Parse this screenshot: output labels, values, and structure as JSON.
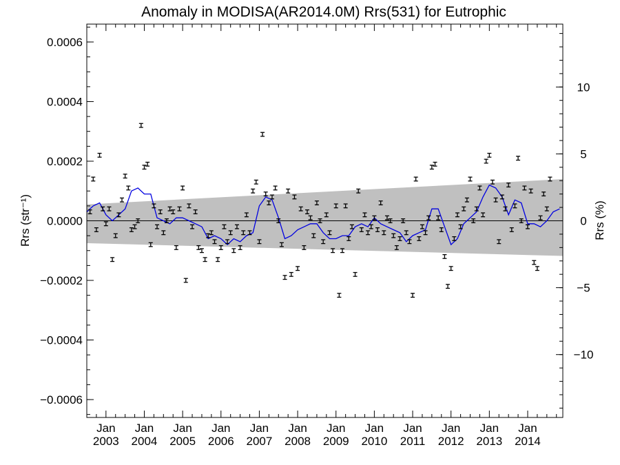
{
  "chart_data": {
    "type": "scatter",
    "title": "Anomaly in MODISA(AR2014.0M) Rrs(531) for Eutrophic",
    "ylabel_left": "Rrs (str⁻¹)",
    "ylabel_right": "Rrs (%)",
    "x_range": [
      "2002-07",
      "2014-12"
    ],
    "ylim_left": [
      -0.00066,
      0.00066
    ],
    "ylim_right": [
      -14.7,
      14.7
    ],
    "x_tick_month": "Jan",
    "x_tick_years": [
      "2003",
      "2004",
      "2005",
      "2006",
      "2007",
      "2008",
      "2009",
      "2010",
      "2011",
      "2012",
      "2013",
      "2014"
    ],
    "y_ticks_left": [
      {
        "value": 0.0006,
        "label": "0.0006"
      },
      {
        "value": 0.0004,
        "label": "0.0004"
      },
      {
        "value": 0.0002,
        "label": "0.0002"
      },
      {
        "value": 0.0,
        "label": "0.0000"
      },
      {
        "value": -0.0002,
        "label": "−0.0002"
      },
      {
        "value": -0.0004,
        "label": "−0.0004"
      },
      {
        "value": -0.0006,
        "label": "−0.0006"
      }
    ],
    "y_ticks_right": [
      {
        "value": 10,
        "label": "10"
      },
      {
        "value": 5,
        "label": "5"
      },
      {
        "value": 0,
        "label": "0"
      },
      {
        "value": -5,
        "label": "−5"
      },
      {
        "value": -10,
        "label": "−10"
      }
    ],
    "band": {
      "start": [
        -7.5e-05,
        5.5e-05
      ],
      "end": [
        -0.000118,
        0.00014
      ]
    },
    "zero_line": 0,
    "colors": {
      "band": "#c0c0c0",
      "line": "#0000e0",
      "points": "#000000"
    },
    "error_half_width": 6.5e-06,
    "points": [
      [
        "2002-08",
        3e-05
      ],
      [
        "2002-09",
        0.00014
      ],
      [
        "2002-10",
        -3e-05
      ],
      [
        "2002-11",
        0.00022
      ],
      [
        "2002-12",
        4e-05
      ],
      [
        "2003-01",
        -1e-05
      ],
      [
        "2003-02",
        4e-05
      ],
      [
        "2003-03",
        -0.00013
      ],
      [
        "2003-04",
        -5e-05
      ],
      [
        "2003-05",
        2e-05
      ],
      [
        "2003-06",
        7e-05
      ],
      [
        "2003-07",
        0.00015
      ],
      [
        "2003-08",
        0.00011
      ],
      [
        "2003-09",
        -3e-05
      ],
      [
        "2003-10",
        -2e-05
      ],
      [
        "2003-11",
        0.0
      ],
      [
        "2003-12",
        0.00032
      ],
      [
        "2004-01",
        0.00018
      ],
      [
        "2004-02",
        0.00019
      ],
      [
        "2004-03",
        -8e-05
      ],
      [
        "2004-04",
        5e-05
      ],
      [
        "2004-05",
        -2e-05
      ],
      [
        "2004-06",
        3e-05
      ],
      [
        "2004-07",
        -4e-05
      ],
      [
        "2004-08",
        0.0
      ],
      [
        "2004-09",
        4e-05
      ],
      [
        "2004-10",
        3e-05
      ],
      [
        "2004-11",
        -9e-05
      ],
      [
        "2004-12",
        4e-05
      ],
      [
        "2005-01",
        0.00011
      ],
      [
        "2005-02",
        -0.0002
      ],
      [
        "2005-03",
        5e-05
      ],
      [
        "2005-04",
        -2e-05
      ],
      [
        "2005-05",
        3e-05
      ],
      [
        "2005-06",
        -9e-05
      ],
      [
        "2005-07",
        -0.0001
      ],
      [
        "2005-08",
        -0.00013
      ],
      [
        "2005-09",
        -5e-05
      ],
      [
        "2005-10",
        -4e-05
      ],
      [
        "2005-11",
        -7e-05
      ],
      [
        "2005-12",
        -0.00013
      ],
      [
        "2006-01",
        -9e-05
      ],
      [
        "2006-02",
        -2e-05
      ],
      [
        "2006-03",
        -7e-05
      ],
      [
        "2006-04",
        -4e-05
      ],
      [
        "2006-05",
        -0.0001
      ],
      [
        "2006-06",
        -2e-05
      ],
      [
        "2006-07",
        -9e-05
      ],
      [
        "2006-08",
        -4e-05
      ],
      [
        "2006-09",
        2e-05
      ],
      [
        "2006-10",
        -4e-05
      ],
      [
        "2006-11",
        0.0001
      ],
      [
        "2006-12",
        0.00013
      ],
      [
        "2007-01",
        -7e-05
      ],
      [
        "2007-02",
        0.00029
      ],
      [
        "2007-03",
        9e-05
      ],
      [
        "2007-04",
        6e-05
      ],
      [
        "2007-05",
        8e-05
      ],
      [
        "2007-06",
        0.00011
      ],
      [
        "2007-07",
        0.0
      ],
      [
        "2007-08",
        -8e-05
      ],
      [
        "2007-09",
        -0.00019
      ],
      [
        "2007-10",
        0.0001
      ],
      [
        "2007-11",
        -0.00018
      ],
      [
        "2007-12",
        8e-05
      ],
      [
        "2008-01",
        -0.00016
      ],
      [
        "2008-02",
        4e-05
      ],
      [
        "2008-03",
        -9e-05
      ],
      [
        "2008-04",
        3e-05
      ],
      [
        "2008-05",
        1e-05
      ],
      [
        "2008-06",
        -5e-05
      ],
      [
        "2008-07",
        6e-05
      ],
      [
        "2008-08",
        0.0
      ],
      [
        "2008-09",
        -7e-05
      ],
      [
        "2008-10",
        2e-05
      ],
      [
        "2008-11",
        -4e-05
      ],
      [
        "2008-12",
        -0.0001
      ],
      [
        "2009-01",
        5e-05
      ],
      [
        "2009-02",
        -0.00025
      ],
      [
        "2009-03",
        -0.0001
      ],
      [
        "2009-04",
        5e-05
      ],
      [
        "2009-05",
        -6e-05
      ],
      [
        "2009-06",
        -2e-05
      ],
      [
        "2009-07",
        -0.00018
      ],
      [
        "2009-08",
        0.0001
      ],
      [
        "2009-09",
        -3e-05
      ],
      [
        "2009-10",
        2e-05
      ],
      [
        "2009-11",
        -4e-05
      ],
      [
        "2009-12",
        -2e-05
      ],
      [
        "2010-01",
        1e-05
      ],
      [
        "2010-02",
        -3e-05
      ],
      [
        "2010-03",
        6e-05
      ],
      [
        "2010-04",
        -4e-05
      ],
      [
        "2010-05",
        1e-05
      ],
      [
        "2010-06",
        0.0
      ],
      [
        "2010-07",
        -5e-05
      ],
      [
        "2010-08",
        -9e-05
      ],
      [
        "2010-09",
        -6e-05
      ],
      [
        "2010-10",
        0.0
      ],
      [
        "2010-11",
        -4e-05
      ],
      [
        "2010-12",
        -7e-05
      ],
      [
        "2011-01",
        -0.00025
      ],
      [
        "2011-02",
        0.00014
      ],
      [
        "2011-03",
        -6e-05
      ],
      [
        "2011-04",
        -2e-05
      ],
      [
        "2011-05",
        -4e-05
      ],
      [
        "2011-06",
        1e-05
      ],
      [
        "2011-07",
        0.00018
      ],
      [
        "2011-08",
        0.00019
      ],
      [
        "2011-09",
        1e-05
      ],
      [
        "2011-10",
        -3e-05
      ],
      [
        "2011-11",
        -0.00012
      ],
      [
        "2011-12",
        -0.00022
      ],
      [
        "2012-01",
        -0.00016
      ],
      [
        "2012-02",
        -6e-05
      ],
      [
        "2012-03",
        2e-05
      ],
      [
        "2012-04",
        -2e-05
      ],
      [
        "2012-05",
        4e-05
      ],
      [
        "2012-06",
        7e-05
      ],
      [
        "2012-07",
        0.00014
      ],
      [
        "2012-08",
        0.0
      ],
      [
        "2012-09",
        4e-05
      ],
      [
        "2012-10",
        0.00011
      ],
      [
        "2012-11",
        2e-05
      ],
      [
        "2012-12",
        0.0002
      ],
      [
        "2013-01",
        0.00022
      ],
      [
        "2013-02",
        0.00013
      ],
      [
        "2013-03",
        7e-05
      ],
      [
        "2013-04",
        -7e-05
      ],
      [
        "2013-05",
        8e-05
      ],
      [
        "2013-06",
        4e-05
      ],
      [
        "2013-07",
        0.00012
      ],
      [
        "2013-08",
        -3e-05
      ],
      [
        "2013-09",
        5e-05
      ],
      [
        "2013-10",
        0.00021
      ],
      [
        "2013-11",
        0.0
      ],
      [
        "2013-12",
        0.00011
      ],
      [
        "2014-01",
        -2e-05
      ],
      [
        "2014-02",
        0.0001
      ],
      [
        "2014-03",
        -0.00014
      ],
      [
        "2014-04",
        -0.00016
      ],
      [
        "2014-05",
        1e-05
      ],
      [
        "2014-06",
        9e-05
      ],
      [
        "2014-07",
        4e-05
      ],
      [
        "2014-08",
        0.00014
      ]
    ],
    "smooth": [
      [
        "2002-07",
        3e-05
      ],
      [
        "2002-09",
        5e-05
      ],
      [
        "2002-11",
        6e-05
      ],
      [
        "2003-01",
        2e-05
      ],
      [
        "2003-03",
        0.0
      ],
      [
        "2003-05",
        2e-05
      ],
      [
        "2003-07",
        4e-05
      ],
      [
        "2003-09",
        0.0001
      ],
      [
        "2003-11",
        0.00011
      ],
      [
        "2004-01",
        9e-05
      ],
      [
        "2004-03",
        9e-05
      ],
      [
        "2004-05",
        1e-05
      ],
      [
        "2004-07",
        0.0
      ],
      [
        "2004-09",
        -1e-05
      ],
      [
        "2004-11",
        1e-05
      ],
      [
        "2005-01",
        1e-05
      ],
      [
        "2005-03",
        0.0
      ],
      [
        "2005-05",
        -1e-05
      ],
      [
        "2005-07",
        -2e-05
      ],
      [
        "2005-09",
        -6e-05
      ],
      [
        "2005-11",
        -5e-05
      ],
      [
        "2006-01",
        -6e-05
      ],
      [
        "2006-03",
        -8e-05
      ],
      [
        "2006-05",
        -6e-05
      ],
      [
        "2006-07",
        -7e-05
      ],
      [
        "2006-09",
        -5e-05
      ],
      [
        "2006-11",
        -4e-05
      ],
      [
        "2007-01",
        5e-05
      ],
      [
        "2007-03",
        8e-05
      ],
      [
        "2007-05",
        7e-05
      ],
      [
        "2007-07",
        1e-05
      ],
      [
        "2007-09",
        -6e-05
      ],
      [
        "2007-11",
        -5e-05
      ],
      [
        "2008-01",
        -3e-05
      ],
      [
        "2008-03",
        -2e-05
      ],
      [
        "2008-05",
        -1e-05
      ],
      [
        "2008-07",
        -1e-05
      ],
      [
        "2008-09",
        -4e-05
      ],
      [
        "2008-11",
        -6e-05
      ],
      [
        "2009-01",
        -6e-05
      ],
      [
        "2009-03",
        -5e-05
      ],
      [
        "2009-05",
        -5e-05
      ],
      [
        "2009-07",
        -2e-05
      ],
      [
        "2009-09",
        -1e-05
      ],
      [
        "2009-11",
        -2e-05
      ],
      [
        "2010-01",
        1e-05
      ],
      [
        "2010-03",
        -1e-05
      ],
      [
        "2010-05",
        -2e-05
      ],
      [
        "2010-07",
        -3e-05
      ],
      [
        "2010-09",
        -4e-05
      ],
      [
        "2010-11",
        -7e-05
      ],
      [
        "2011-01",
        -5e-05
      ],
      [
        "2011-03",
        -4e-05
      ],
      [
        "2011-05",
        -3e-05
      ],
      [
        "2011-07",
        4e-05
      ],
      [
        "2011-09",
        4e-05
      ],
      [
        "2011-11",
        -2e-05
      ],
      [
        "2012-01",
        -8e-05
      ],
      [
        "2012-03",
        -6e-05
      ],
      [
        "2012-05",
        -1e-05
      ],
      [
        "2012-07",
        1e-05
      ],
      [
        "2012-09",
        3e-05
      ],
      [
        "2012-11",
        8e-05
      ],
      [
        "2013-01",
        0.00012
      ],
      [
        "2013-03",
        0.00011
      ],
      [
        "2013-05",
        8e-05
      ],
      [
        "2013-07",
        2e-05
      ],
      [
        "2013-09",
        7e-05
      ],
      [
        "2013-11",
        6e-05
      ],
      [
        "2014-01",
        -1e-05
      ],
      [
        "2014-03",
        -1e-05
      ],
      [
        "2014-05",
        -2e-05
      ],
      [
        "2014-07",
        0.0
      ],
      [
        "2014-09",
        3e-05
      ],
      [
        "2014-11",
        4e-05
      ]
    ]
  }
}
